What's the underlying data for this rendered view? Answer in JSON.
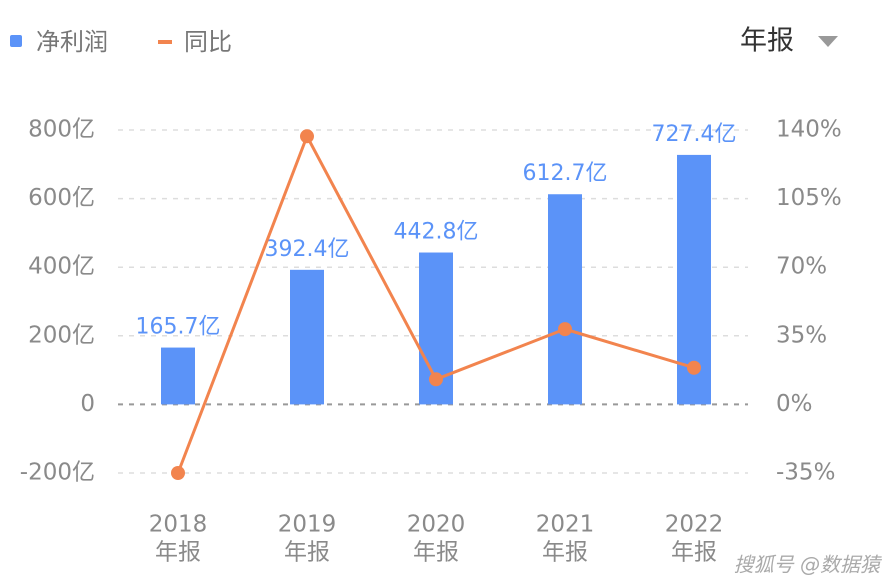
{
  "chart_data": {
    "type": "bar-line",
    "period_selector": "年报",
    "watermark": "搜狐号 @数据猿",
    "categories": [
      [
        "2018",
        "年报"
      ],
      [
        "2019",
        "年报"
      ],
      [
        "2020",
        "年报"
      ],
      [
        "2021",
        "年报"
      ],
      [
        "2022",
        "年报"
      ]
    ],
    "series": [
      {
        "name": "净利润",
        "type": "bar",
        "color": "#5b93f8",
        "values": [
          165.7,
          392.4,
          442.8,
          612.7,
          727.4
        ],
        "value_labels": [
          "165.7亿",
          "392.4亿",
          "442.8亿",
          "612.7亿",
          "727.4亿"
        ]
      },
      {
        "name": "同比",
        "type": "line",
        "axis": "y2",
        "color": "#f2844e",
        "values": [
          -35,
          136.8,
          12.8,
          38.4,
          18.7
        ]
      }
    ],
    "ylim": [
      -200,
      800
    ],
    "yticks": [
      {
        "value": -200,
        "label": "-200亿"
      },
      0,
      {
        "value": 200,
        "label": "200亿"
      },
      {
        "value": 400,
        "label": "400亿"
      },
      {
        "value": 600,
        "label": "600亿"
      },
      {
        "value": 800,
        "label": "800亿"
      }
    ],
    "y2lim": [
      -35,
      140
    ],
    "y2ticks": [
      {
        "value": -35,
        "label": "-35%"
      },
      {
        "value": 0,
        "label": "0%"
      },
      {
        "value": 35,
        "label": "35%"
      },
      {
        "value": 70,
        "label": "70%"
      },
      {
        "value": 105,
        "label": "105%"
      },
      {
        "value": 140,
        "label": "140%"
      }
    ],
    "grid": true
  }
}
